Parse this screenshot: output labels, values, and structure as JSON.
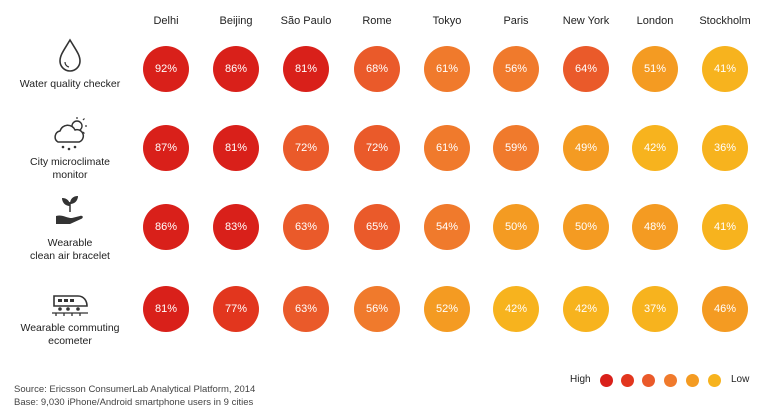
{
  "chart_data": {
    "type": "heatmap",
    "columns": [
      "Delhi",
      "Beijing",
      "São Paulo",
      "Rome",
      "Tokyo",
      "Paris",
      "New York",
      "London",
      "Stockholm"
    ],
    "rows": [
      {
        "label_lines": [
          "Water quality checker"
        ],
        "icon": "water-drop-icon",
        "values": [
          92,
          86,
          81,
          68,
          61,
          56,
          64,
          51,
          41
        ]
      },
      {
        "label_lines": [
          "City microclimate",
          "monitor"
        ],
        "icon": "weather-cloud-icon",
        "values": [
          87,
          81,
          72,
          72,
          61,
          59,
          49,
          42,
          36
        ]
      },
      {
        "label_lines": [
          "Wearable",
          "clean air bracelet"
        ],
        "icon": "hand-plant-icon",
        "values": [
          86,
          83,
          63,
          65,
          54,
          50,
          50,
          48,
          41
        ]
      },
      {
        "label_lines": [
          "Wearable commuting",
          "ecometer"
        ],
        "icon": "train-icon",
        "values": [
          81,
          77,
          63,
          56,
          52,
          42,
          42,
          37,
          46
        ]
      }
    ],
    "value_suffix": "%",
    "color_scale": [
      "#d9201a",
      "#e2361e",
      "#ea5a2a",
      "#f07a2c",
      "#f49b22",
      "#f7b31e"
    ],
    "legend": {
      "high_label": "High",
      "low_label": "Low"
    }
  },
  "footer": {
    "source": "Source: Ericsson ConsumerLab Analytical Platform, 2014",
    "base": "Base: 9,030 iPhone/Android smartphone users in 9 cities"
  }
}
